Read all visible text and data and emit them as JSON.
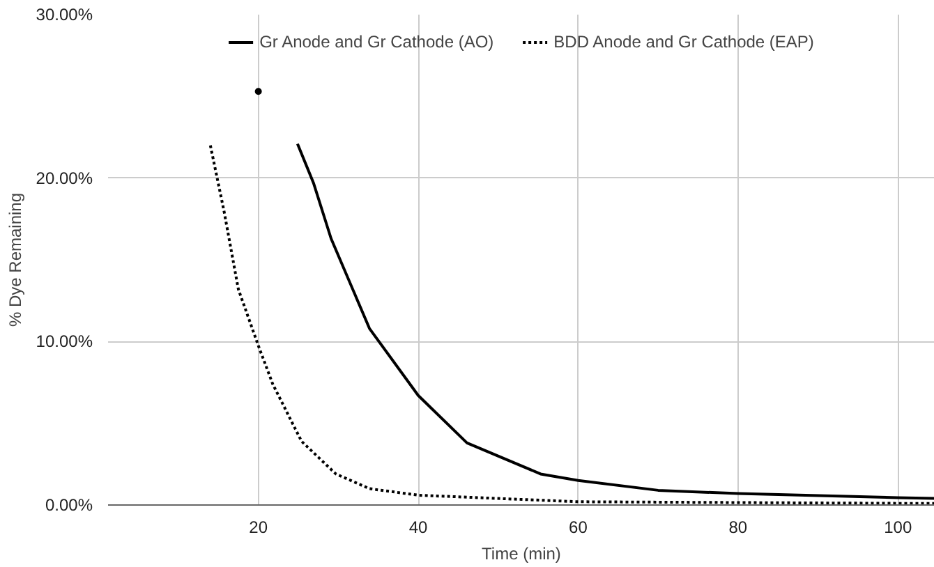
{
  "chart_data": {
    "type": "line",
    "xlabel": "Time (min)",
    "ylabel": "% Dye Remaining",
    "series": [
      {
        "name": "Gr Anode and Gr Cathode (AO)",
        "color": "#000000",
        "line_style": "solid",
        "x": [
          24.9,
          26.9,
          29.1,
          33.9,
          40.0,
          46.1,
          55.3,
          60,
          70,
          80,
          100,
          104.6
        ],
        "values": [
          22.1,
          19.7,
          16.3,
          10.8,
          6.7,
          3.8,
          1.9,
          1.5,
          0.9,
          0.7,
          0.45,
          0.4
        ]
      },
      {
        "name": "BDD Anode and Gr Cathode (EAP)",
        "color": "#000000",
        "line_style": "dotted",
        "x": [
          14.0,
          15.7,
          17.5,
          20,
          21.8,
          25.4,
          29.7,
          33.9,
          40,
          60,
          80,
          100,
          104.6
        ],
        "values": [
          22.0,
          18.0,
          13.2,
          9.75,
          7.4,
          3.9,
          1.9,
          1.0,
          0.6,
          0.2,
          0.15,
          0.1,
          0.1
        ]
      },
      {
        "type": "scatter",
        "color": "#000000",
        "marker": "circle",
        "x": [
          20
        ],
        "values": [
          25.3
        ]
      }
    ],
    "xlim": [
      1.2,
      104.6
    ],
    "ylim": [
      0,
      30
    ],
    "xticks": [
      20,
      40,
      60,
      80,
      100
    ],
    "yticks": [
      {
        "value": 0,
        "label": "0.00%"
      },
      {
        "value": 10,
        "label": "10.00%"
      },
      {
        "value": 20,
        "label": "20.00%"
      },
      {
        "value": 30,
        "label": "30.00%"
      }
    ],
    "grid": true,
    "legend": "top"
  }
}
